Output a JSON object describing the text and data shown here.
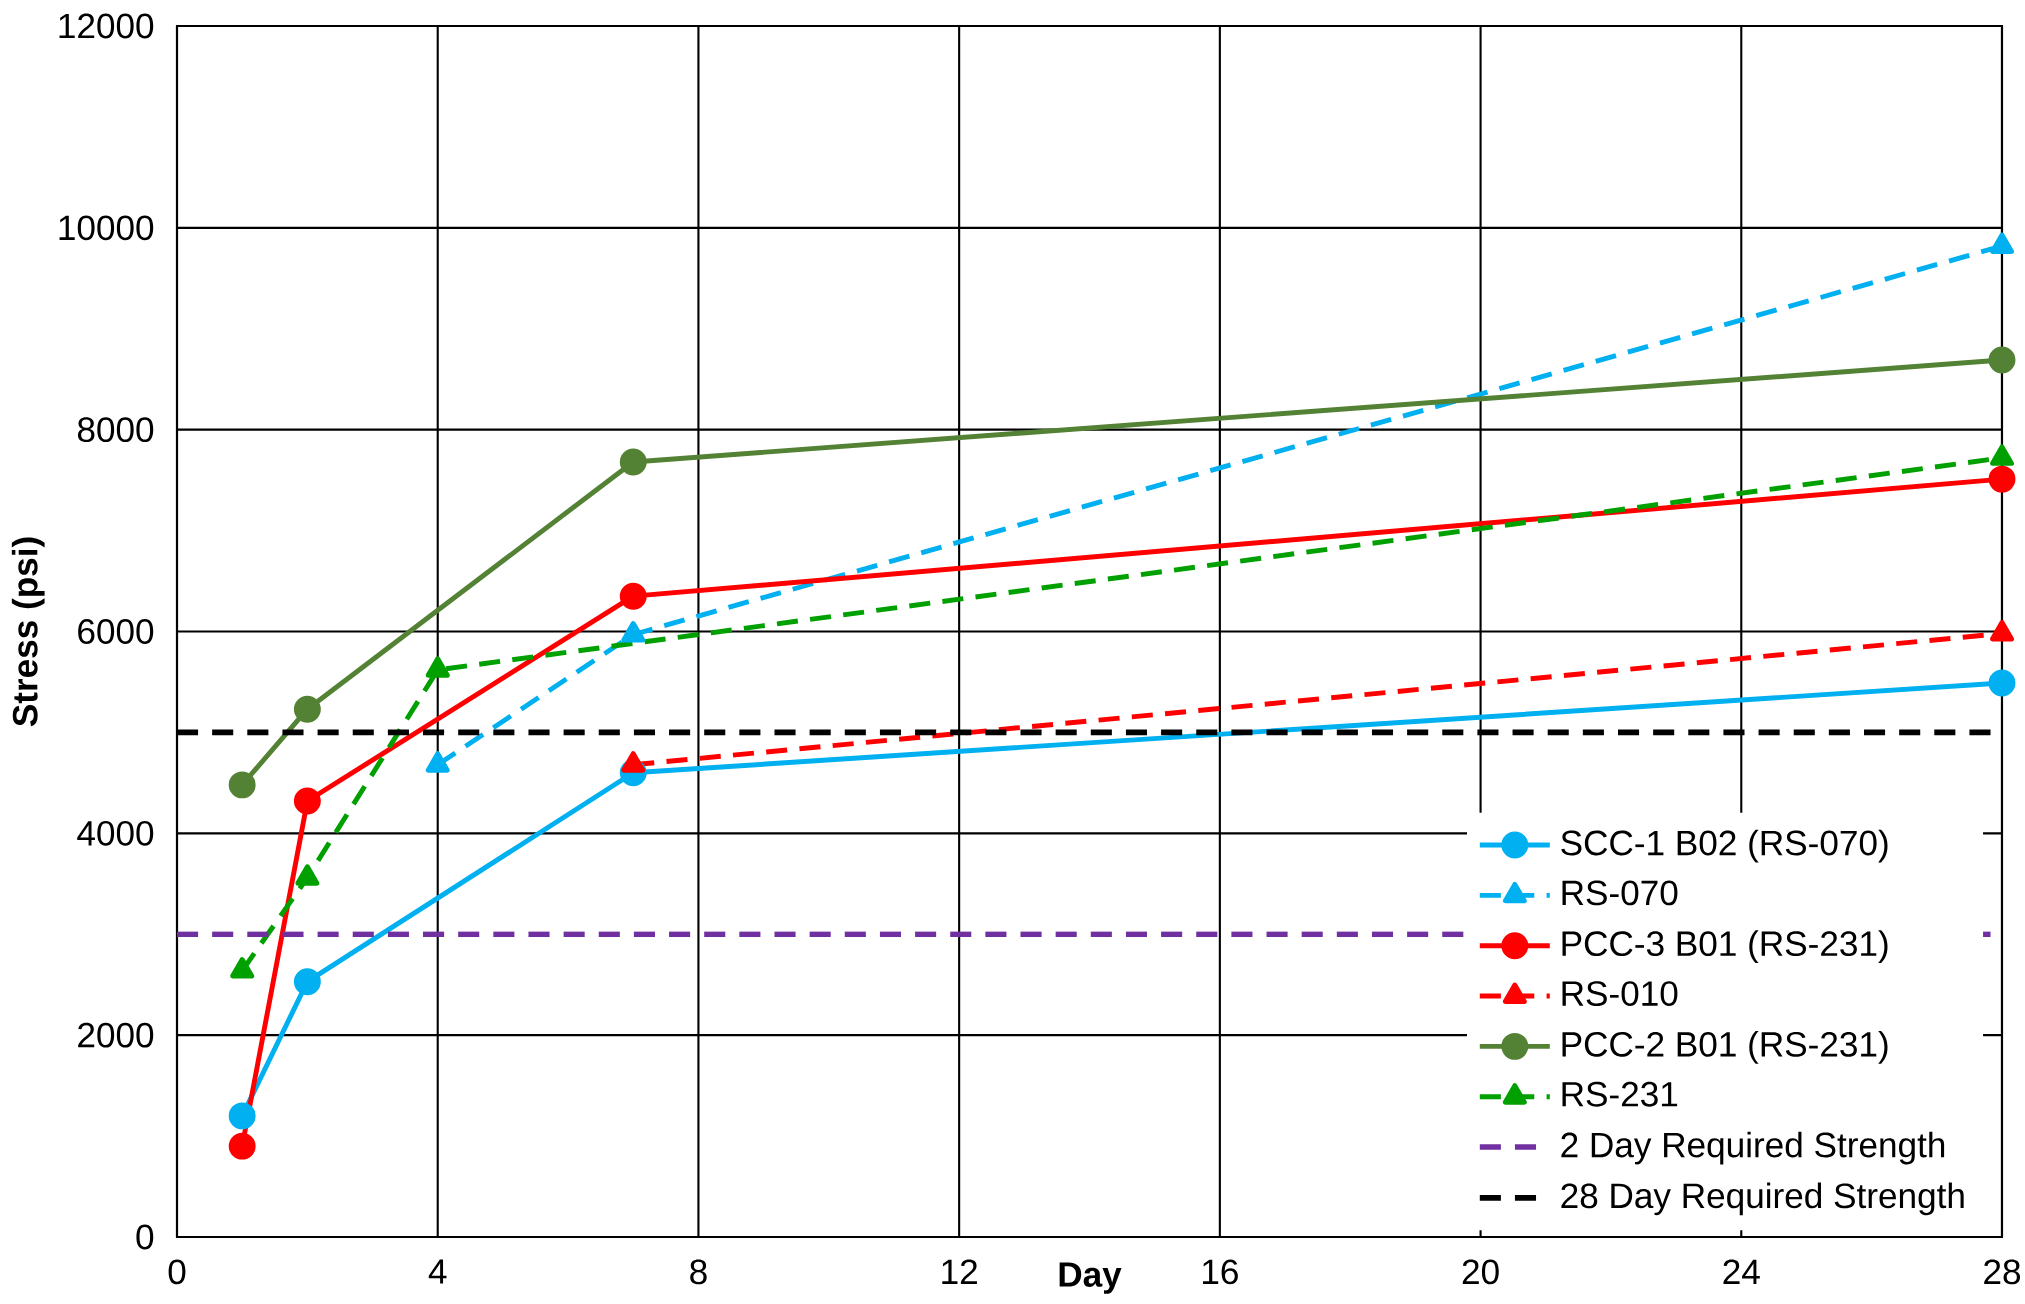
{
  "chart_data": {
    "type": "line",
    "xlabel": "Day",
    "ylabel": "Stress (psi)",
    "xlim": [
      0,
      28
    ],
    "xticks": [
      0,
      4,
      8,
      12,
      16,
      20,
      24,
      28
    ],
    "ylim": [
      0,
      12000
    ],
    "yticks": [
      0,
      2000,
      4000,
      6000,
      8000,
      10000,
      12000
    ],
    "grid": true,
    "legend": "bottom right",
    "series": [
      {
        "name": "SCC-1 B02 (RS-070)",
        "color": "#00b0f0",
        "x": [
          1,
          2,
          7,
          28
        ],
        "values": [
          1200,
          2530,
          4600,
          5490
        ],
        "marker": "circle",
        "line_style": "solid"
      },
      {
        "name": "RS-070",
        "color": "#00b0f0",
        "x": [
          4,
          7,
          28
        ],
        "values": [
          4680,
          5970,
          9820
        ],
        "marker": "triangle",
        "line_style": "dashed"
      },
      {
        "name": "PCC-3 B01 (RS-231)",
        "color": "#ff0000",
        "x": [
          1,
          2,
          7,
          28
        ],
        "values": [
          900,
          4320,
          6350,
          7510
        ],
        "marker": "circle",
        "line_style": "solid"
      },
      {
        "name": "RS-010",
        "color": "#ff0000",
        "x": [
          7,
          28
        ],
        "values": [
          4680,
          5980
        ],
        "marker": "triangle",
        "line_style": "dashed"
      },
      {
        "name": "PCC-2 B01 (RS-231)",
        "color": "#548235",
        "x": [
          1,
          2,
          7,
          28
        ],
        "values": [
          4480,
          5230,
          7680,
          8690
        ],
        "marker": "circle",
        "line_style": "solid"
      },
      {
        "name": "RS-231",
        "color": "#00a000",
        "x": [
          1,
          2,
          4,
          28
        ],
        "values": [
          2640,
          3560,
          5620,
          7720
        ],
        "marker": "triangle",
        "line_style": "dashed"
      }
    ],
    "ref_lines": [
      {
        "axis": "y",
        "value": 3000,
        "label": "2 Day Required Strength",
        "color": "#7030a0",
        "line_style": "dashed"
      },
      {
        "axis": "y",
        "value": 5000,
        "label": "28 Day Required Strength",
        "color": "#000000",
        "line_style": "dashed"
      }
    ]
  }
}
